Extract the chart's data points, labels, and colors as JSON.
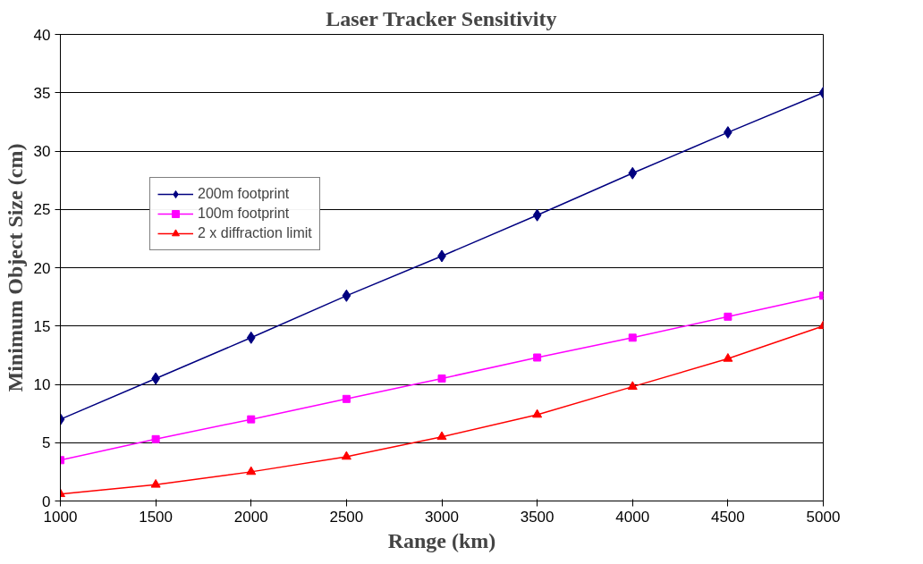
{
  "chart_data": {
    "type": "line",
    "title": "Laser Tracker Sensitivity",
    "xlabel": "Range (km)",
    "ylabel": "Minimum Object Size (cm)",
    "x": [
      1000,
      1500,
      2000,
      2500,
      3000,
      3500,
      4000,
      4500,
      5000
    ],
    "series": [
      {
        "name": "200m footprint",
        "color": "#000080",
        "marker": "diamond",
        "values": [
          7,
          10.5,
          14,
          17.6,
          21,
          24.5,
          28.1,
          31.6,
          35
        ]
      },
      {
        "name": "100m footprint",
        "color": "#ff00ff",
        "marker": "square",
        "values": [
          3.5,
          5.3,
          7,
          8.75,
          10.5,
          12.3,
          14,
          15.8,
          17.6
        ]
      },
      {
        "name": "2 x diffraction limit",
        "color": "#ff0000",
        "marker": "triangle",
        "values": [
          0.6,
          1.4,
          2.5,
          3.8,
          5.5,
          7.4,
          9.8,
          12.2,
          15
        ]
      }
    ],
    "xlim": [
      1000,
      5000
    ],
    "xticks": [
      1000,
      1500,
      2000,
      2500,
      3000,
      3500,
      4000,
      4500,
      5000
    ],
    "ylim": [
      0,
      40
    ],
    "yticks": [
      0,
      5,
      10,
      15,
      20,
      25,
      30,
      35,
      40
    ],
    "grid": "y",
    "legend": "top left",
    "line_style": "solid"
  }
}
